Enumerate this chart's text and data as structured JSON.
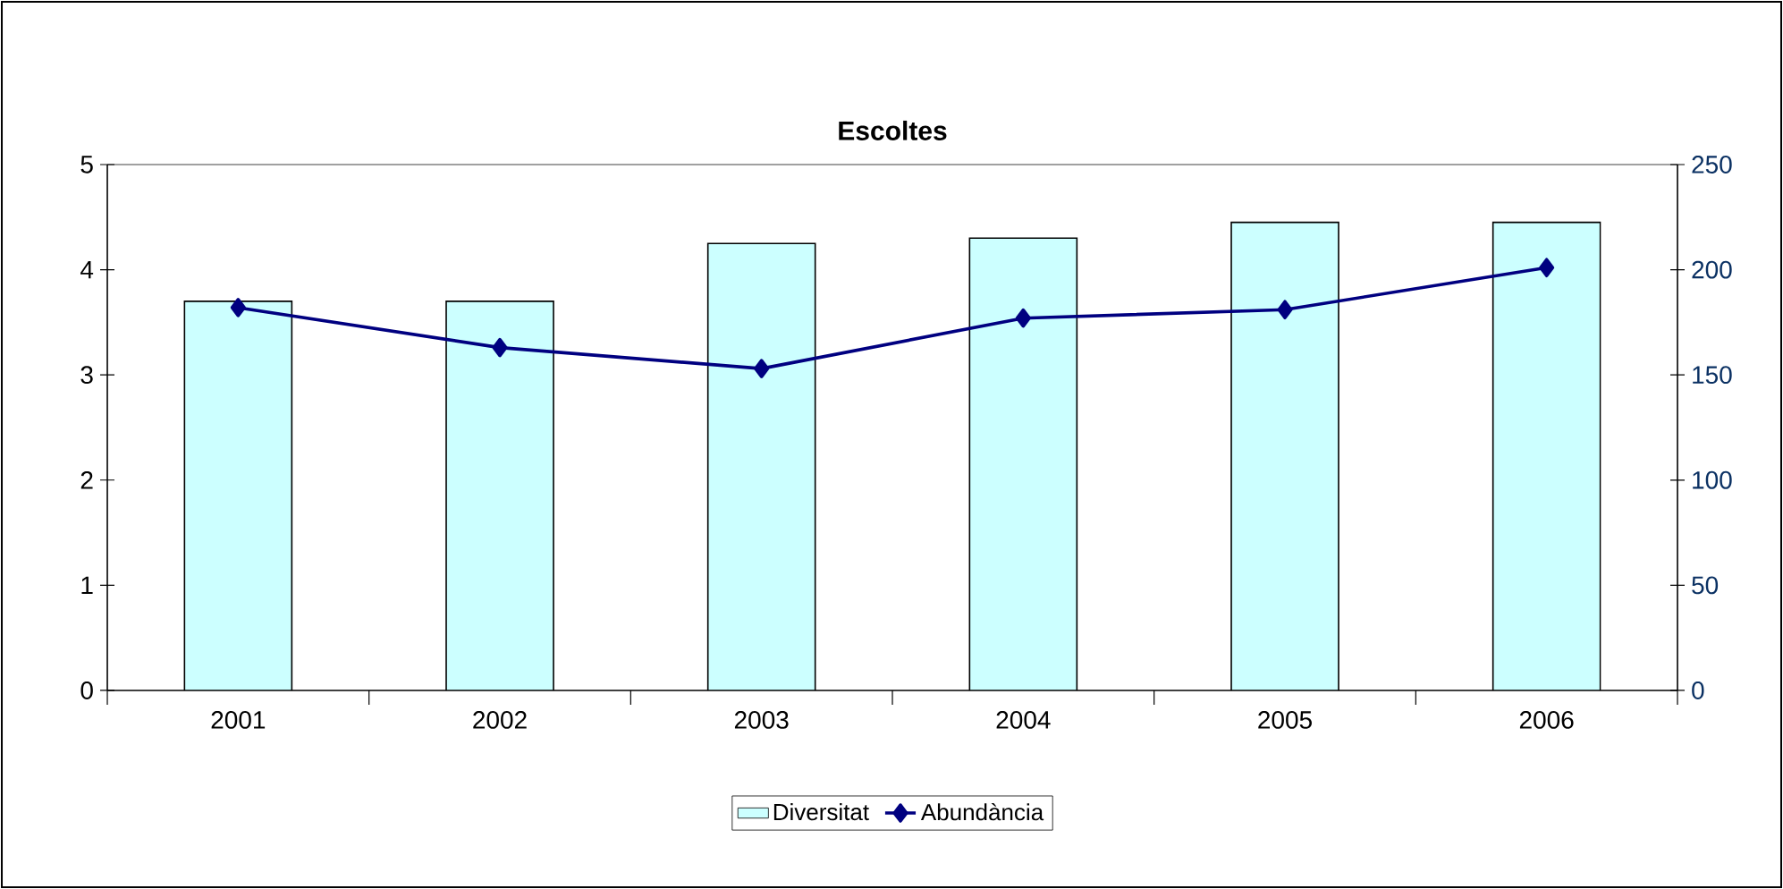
{
  "chart_data": {
    "type": "bar",
    "title": "Escoltes",
    "categories": [
      "2001",
      "2002",
      "2003",
      "2004",
      "2005",
      "2006"
    ],
    "series": [
      {
        "name": "Diversitat",
        "color": "#ccffff",
        "values": [
          3.7,
          3.7,
          4.25,
          4.3,
          4.45,
          4.45
        ]
      },
      {
        "name": "Abundància",
        "type": "line",
        "axis": "y2",
        "color": "#000080",
        "marker": "diamond",
        "values": [
          182,
          163,
          153,
          177,
          181,
          201
        ]
      }
    ],
    "ylim": [
      0,
      5
    ],
    "yticks": [
      0,
      1,
      2,
      3,
      4,
      5
    ],
    "y2lim": [
      0,
      250
    ],
    "y2ticks": [
      0,
      50,
      100,
      150,
      200,
      250
    ],
    "legend": "bottom",
    "grid": false
  }
}
